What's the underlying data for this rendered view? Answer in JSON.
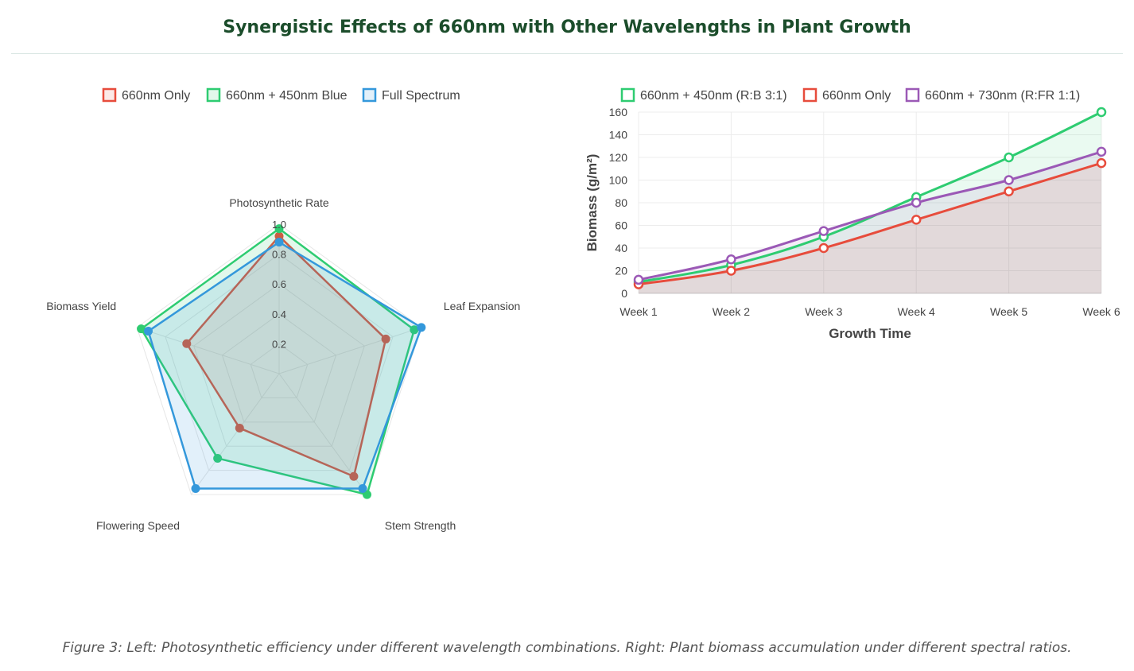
{
  "page": {
    "title": "Synergistic Effects of 660nm with Other Wavelengths in Plant Growth",
    "caption": "Figure 3: Left: Photosynthetic efficiency under different wavelength combinations. Right: Plant biomass accumulation under different spectral ratios."
  },
  "chart_data": [
    {
      "type": "radar",
      "title": "",
      "axes": [
        "Photosynthetic Rate",
        "Leaf Expansion",
        "Stem Strength",
        "Flowering Speed",
        "Biomass Yield"
      ],
      "r_ticks": [
        "0.2",
        "0.4",
        "0.6",
        "0.8",
        "1.0"
      ],
      "r_range": [
        0,
        1
      ],
      "legend_position": "top",
      "series": [
        {
          "name": "660nm Only",
          "color": "#e74c3c",
          "fill": "rgba(231,76,60,0.12)",
          "values": [
            0.92,
            0.75,
            0.85,
            0.45,
            0.65
          ]
        },
        {
          "name": "660nm + 450nm Blue",
          "color": "#2ecc71",
          "fill": "rgba(46,204,113,0.14)",
          "values": [
            0.97,
            0.95,
            1.0,
            0.7,
            0.97
          ]
        },
        {
          "name": "Full Spectrum",
          "color": "#3498db",
          "fill": "rgba(52,152,219,0.14)",
          "values": [
            0.88,
            1.0,
            0.95,
            0.95,
            0.92
          ]
        }
      ]
    },
    {
      "type": "line",
      "title": "",
      "xlabel": "Growth Time",
      "ylabel": "Biomass (g/m²)",
      "categories": [
        "Week 1",
        "Week 2",
        "Week 3",
        "Week 4",
        "Week 5",
        "Week 6"
      ],
      "ylim": [
        0,
        160
      ],
      "y_ticks": [
        "0",
        "20",
        "40",
        "60",
        "80",
        "100",
        "120",
        "140",
        "160"
      ],
      "grid": true,
      "legend_position": "top",
      "series": [
        {
          "name": "660nm + 450nm (R:B 3:1)",
          "color": "#2ecc71",
          "fill": "rgba(46,204,113,0.10)",
          "values": [
            10,
            25,
            50,
            85,
            120,
            160
          ]
        },
        {
          "name": "660nm Only",
          "color": "#e74c3c",
          "fill": "rgba(231,76,60,0.10)",
          "values": [
            8,
            20,
            40,
            65,
            90,
            115
          ]
        },
        {
          "name": "660nm + 730nm (R:FR 1:1)",
          "color": "#9b59b6",
          "fill": "rgba(155,89,182,0.10)",
          "values": [
            12,
            30,
            55,
            80,
            100,
            125
          ]
        }
      ]
    }
  ]
}
